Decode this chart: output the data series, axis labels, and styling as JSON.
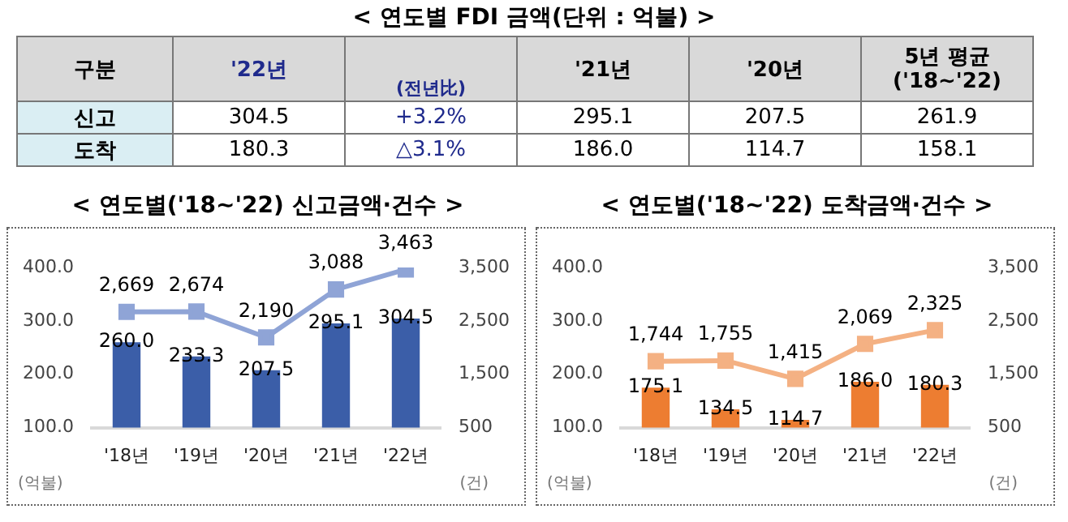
{
  "chart_data": [
    {
      "type": "other",
      "title": "< 연도별 FDI 금액(단위 : 억불) >",
      "annotations": [
        "구분",
        "'22년",
        "(전년比)",
        "'21년",
        "'20년",
        "5년 평균\n('18~'22)",
        "신고",
        "304.5",
        "+3.2%",
        "295.1",
        "207.5",
        "261.9",
        "도착",
        "180.3",
        "△3.1%",
        "186.0",
        "114.7",
        "158.1"
      ]
    },
    {
      "type": "bar",
      "title": "< 연도별('18~'22) 신고금액·건수 >",
      "categories": [
        "'18년",
        "'19년",
        "'20년",
        "'21년",
        "'22년"
      ],
      "ylabel": "(억불)",
      "y2label": "(건)",
      "ylim": [
        100,
        400
      ],
      "yticks": [
        {
          "value": 100,
          "label": "100.0"
        },
        {
          "value": 200,
          "label": "200.0"
        },
        {
          "value": 300,
          "label": "300.0"
        },
        {
          "value": 400,
          "label": "400.0"
        }
      ],
      "y2lim": [
        500,
        3500
      ],
      "y2ticks": [
        {
          "value": 500,
          "label": "500"
        },
        {
          "value": 1500,
          "label": "1,500"
        },
        {
          "value": 2500,
          "label": "2,500"
        },
        {
          "value": 3500,
          "label": "3,500"
        }
      ],
      "marker": "square",
      "series": [
        {
          "type": "bar",
          "color": "#3b5ea8",
          "values": [
            260.0,
            233.3,
            207.5,
            295.1,
            304.5
          ],
          "value_labels": [
            "260.0",
            "233.3",
            "207.5",
            "295.1",
            "304.5"
          ]
        },
        {
          "type": "line",
          "axis": "y2",
          "color": "#8fa4d6",
          "values": [
            2669,
            2674,
            2190,
            3088,
            3463
          ],
          "value_labels": [
            "2,669",
            "2,674",
            "2,190",
            "3,088",
            "3,463"
          ]
        }
      ]
    },
    {
      "type": "bar",
      "title": "< 연도별('18~'22) 도착금액·건수 >",
      "categories": [
        "'18년",
        "'19년",
        "'20년",
        "'21년",
        "'22년"
      ],
      "ylabel": "(억불)",
      "y2label": "(건)",
      "ylim": [
        100,
        400
      ],
      "yticks": [
        {
          "value": 100,
          "label": "100.0"
        },
        {
          "value": 200,
          "label": "200.0"
        },
        {
          "value": 300,
          "label": "300.0"
        },
        {
          "value": 400,
          "label": "400.0"
        }
      ],
      "y2lim": [
        500,
        3500
      ],
      "y2ticks": [
        {
          "value": 500,
          "label": "500"
        },
        {
          "value": 1500,
          "label": "1,500"
        },
        {
          "value": 2500,
          "label": "2,500"
        },
        {
          "value": 3500,
          "label": "3,500"
        }
      ],
      "marker": "square",
      "series": [
        {
          "type": "bar",
          "color": "#ed7d31",
          "values": [
            175.1,
            134.5,
            114.7,
            186.0,
            180.3
          ],
          "value_labels": [
            "175.1",
            "134.5",
            "114.7",
            "186.0",
            "180.3"
          ]
        },
        {
          "type": "line",
          "axis": "y2",
          "color": "#f4b183",
          "values": [
            1744,
            1755,
            1415,
            2069,
            2325
          ],
          "value_labels": [
            "1,744",
            "1,755",
            "1,415",
            "2,069",
            "2,325"
          ]
        }
      ]
    }
  ]
}
